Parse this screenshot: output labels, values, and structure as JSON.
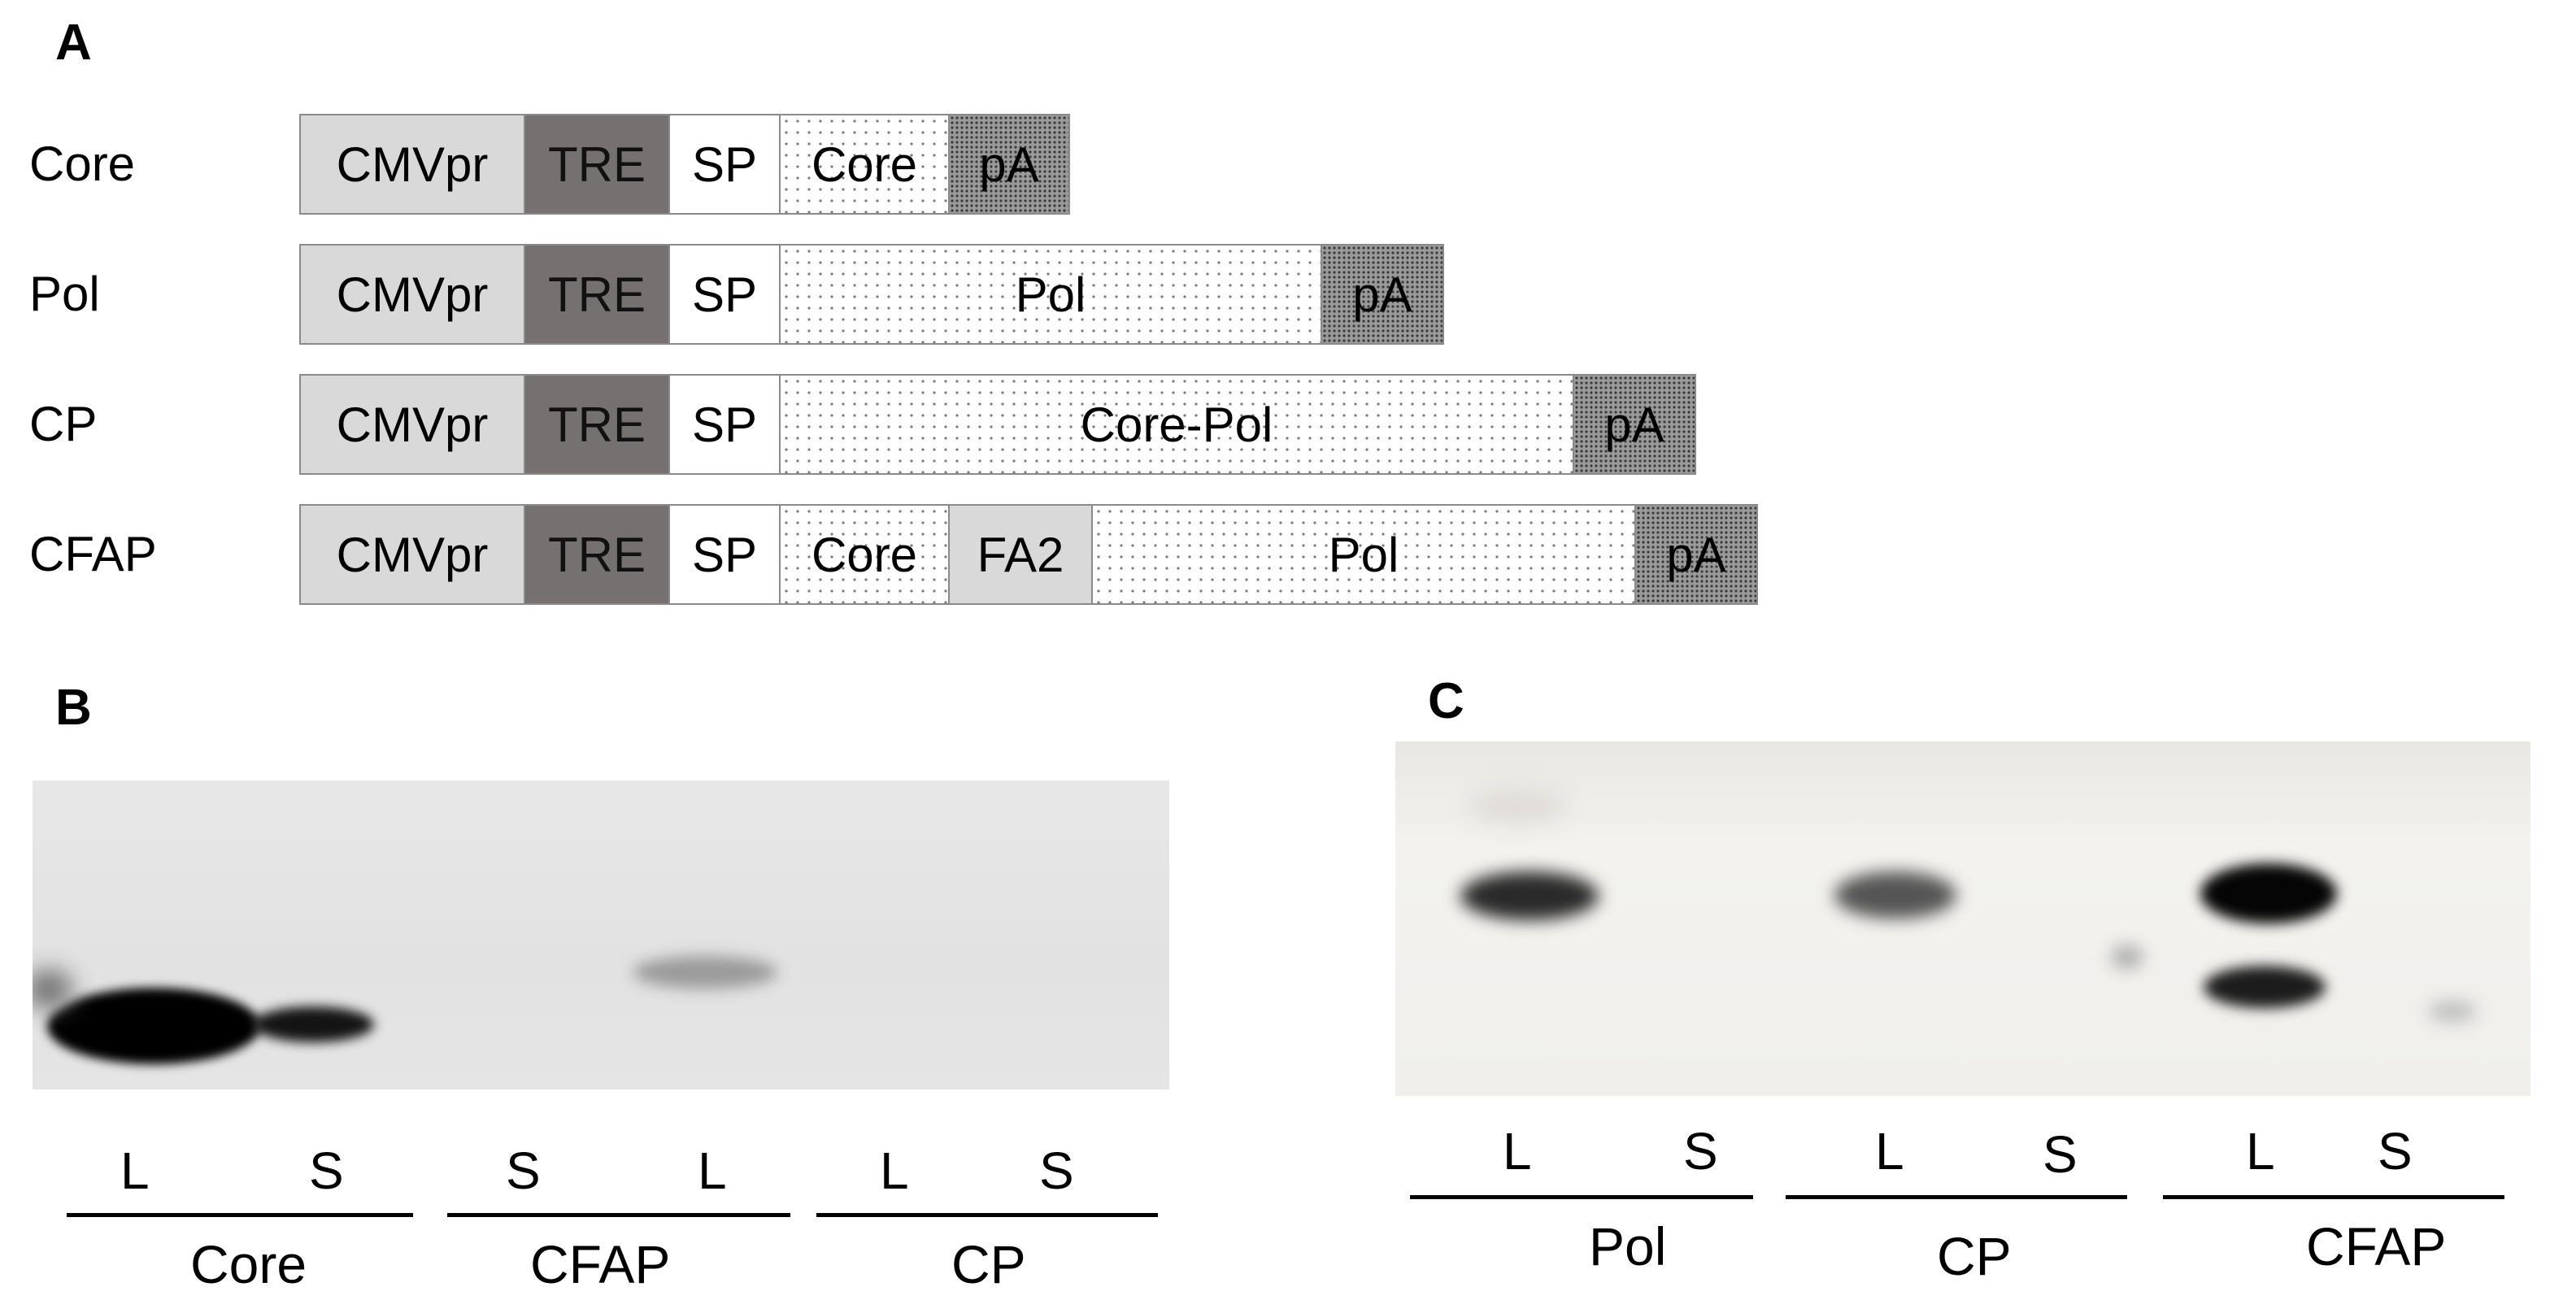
{
  "panels": {
    "a": "A",
    "b": "B",
    "c": "C"
  },
  "constructs": [
    {
      "name": "Core",
      "segments": [
        {
          "type": "cmv",
          "label": "CMVpr"
        },
        {
          "type": "tre",
          "label": "TRE"
        },
        {
          "type": "sp",
          "label": "SP"
        },
        {
          "type": "gene",
          "label": "Core"
        },
        {
          "type": "pa",
          "label": "pA"
        }
      ]
    },
    {
      "name": "Pol",
      "segments": [
        {
          "type": "cmv",
          "label": "CMVpr"
        },
        {
          "type": "tre",
          "label": "TRE"
        },
        {
          "type": "sp",
          "label": "SP"
        },
        {
          "type": "gene",
          "label": "Pol"
        },
        {
          "type": "pa",
          "label": "pA"
        }
      ]
    },
    {
      "name": "CP",
      "segments": [
        {
          "type": "cmv",
          "label": "CMVpr"
        },
        {
          "type": "tre",
          "label": "TRE"
        },
        {
          "type": "sp",
          "label": "SP"
        },
        {
          "type": "gene",
          "label": "Core-Pol"
        },
        {
          "type": "pa",
          "label": "pA"
        }
      ]
    },
    {
      "name": "CFAP",
      "segments": [
        {
          "type": "cmv",
          "label": "CMVpr"
        },
        {
          "type": "tre",
          "label": "TRE"
        },
        {
          "type": "sp",
          "label": "SP"
        },
        {
          "type": "gene",
          "label": "Core"
        },
        {
          "type": "fa2",
          "label": "FA2"
        },
        {
          "type": "gene",
          "label": "Pol"
        },
        {
          "type": "pa",
          "label": "pA"
        }
      ]
    }
  ],
  "blot_b": {
    "lanes": [
      "L",
      "S",
      "S",
      "L",
      "L",
      "S"
    ],
    "groups": [
      "Core",
      "CFAP",
      "CP"
    ]
  },
  "blot_c": {
    "lanes": [
      "L",
      "S",
      "L",
      "S",
      "L",
      "S"
    ],
    "groups": [
      "Pol",
      "CP",
      "CFAP"
    ]
  },
  "colors": {
    "cmv": "#d9d9d9",
    "tre": "#767171",
    "gene_dots": "#7a7a7a",
    "pa": "#9a9a9a",
    "blot_b_bg": "#e4e4e4",
    "blot_c_bg": "#efeeeb"
  }
}
